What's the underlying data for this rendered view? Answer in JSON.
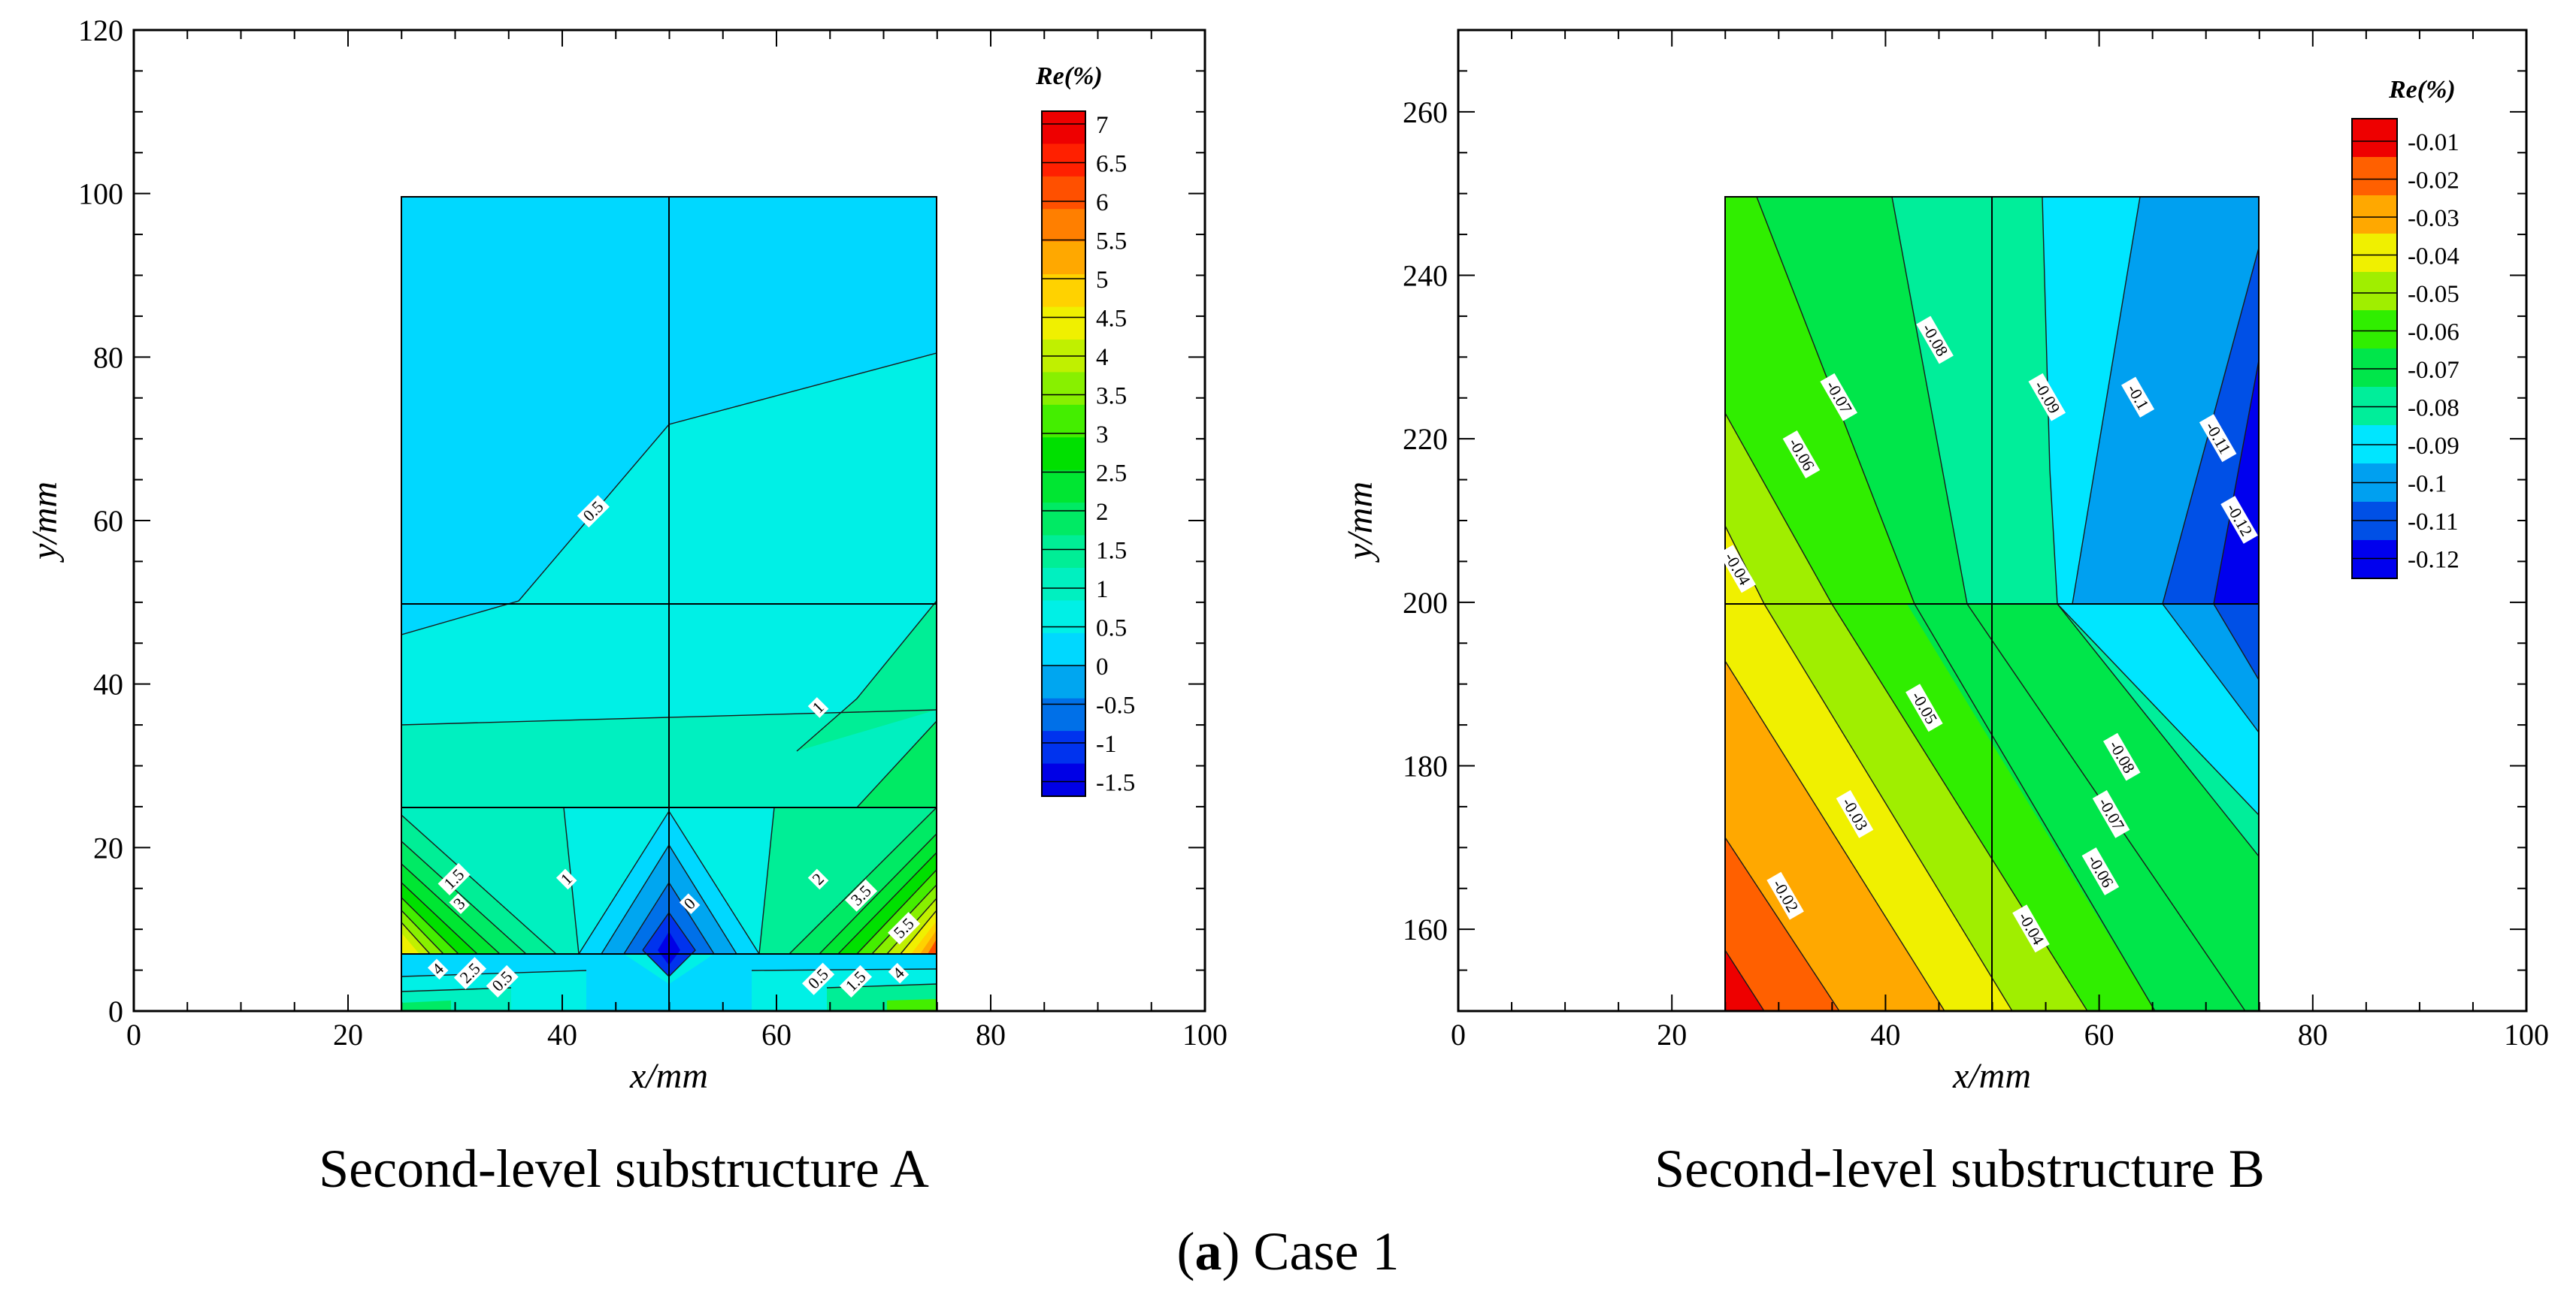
{
  "figure": {
    "caption_letter": "a",
    "caption_rest": "Case 1",
    "caption_open": "(",
    "caption_close": ")"
  },
  "colors": {
    "levels_A": [
      "#0000e6",
      "#0033ee",
      "#0070e8",
      "#00a6f0",
      "#00d8ff",
      "#00f0e6",
      "#00f0c0",
      "#00ee96",
      "#00ea64",
      "#00e632",
      "#00e000",
      "#44ee00",
      "#88f000",
      "#c0f000",
      "#f0f000",
      "#ffd200",
      "#ffa800",
      "#ff7f00",
      "#ff5000",
      "#ff2000",
      "#ee0000"
    ],
    "levels_B": [
      "#0000ee",
      "#0050e6",
      "#00a0f0",
      "#00e6ff",
      "#00ee9a",
      "#00e64a",
      "#30ee00",
      "#a0ee00",
      "#f0f000",
      "#ffa800",
      "#ff6000",
      "#ee0000"
    ]
  },
  "chart_data": [
    {
      "type": "contour",
      "id": "A",
      "subtitle": "Second-level substructure A",
      "xlabel": "x/mm",
      "ylabel": "y/mm",
      "xlim": [
        0,
        100
      ],
      "ylim": [
        0,
        120
      ],
      "xticks": [
        "0",
        "20",
        "40",
        "60",
        "80",
        "100"
      ],
      "yticks": [
        "0",
        "20",
        "40",
        "60",
        "80",
        "100",
        "120"
      ],
      "domain_x": [
        25,
        75
      ],
      "domain_y": [
        0,
        100
      ],
      "mesh_lines_x": [
        50
      ],
      "mesh_lines_y": [
        6,
        25,
        50
      ],
      "colorbar": {
        "title": "Re(%)",
        "labels": [
          "7",
          "6.5",
          "6",
          "5.5",
          "5",
          "4.5",
          "4",
          "3.5",
          "3",
          "2.5",
          "2",
          "1.5",
          "1",
          "0.5",
          "0",
          "-0.5",
          "-1",
          "-1.5"
        ]
      },
      "contour_labels": [
        {
          "text": "0.5",
          "x": 43,
          "y": 61
        },
        {
          "text": "1",
          "x": 64,
          "y": 37
        },
        {
          "text": "1.5",
          "x": 30,
          "y": 16
        },
        {
          "text": "1",
          "x": 40.5,
          "y": 16
        },
        {
          "text": "2",
          "x": 64,
          "y": 16
        },
        {
          "text": "3",
          "x": 30.5,
          "y": 13
        },
        {
          "text": "0",
          "x": 52,
          "y": 13
        },
        {
          "text": "3.5",
          "x": 68,
          "y": 14
        },
        {
          "text": "5.5",
          "x": 72,
          "y": 10
        },
        {
          "text": "4",
          "x": 28.5,
          "y": 5
        },
        {
          "text": "2.5",
          "x": 31.5,
          "y": 4.5
        },
        {
          "text": "0.5",
          "x": 34.5,
          "y": 3.5
        },
        {
          "text": "0.5",
          "x": 64,
          "y": 3.8
        },
        {
          "text": "1.5",
          "x": 67.5,
          "y": 3.5
        },
        {
          "text": "4",
          "x": 71.5,
          "y": 4.5
        }
      ]
    },
    {
      "type": "contour",
      "id": "B",
      "subtitle": "Second-level substructure B",
      "xlabel": "x/mm",
      "ylabel": "y/mm",
      "xlim": [
        0,
        100
      ],
      "ylim": [
        150,
        270
      ],
      "xticks": [
        "0",
        "20",
        "40",
        "60",
        "80",
        "100"
      ],
      "yticks": [
        "160",
        "180",
        "200",
        "220",
        "240",
        "260"
      ],
      "domain_x": [
        25,
        75
      ],
      "domain_y": [
        150,
        250
      ],
      "mesh_lines_x": [
        50
      ],
      "mesh_lines_y": [
        200
      ],
      "colorbar": {
        "title": "Re(%)",
        "labels": [
          "-0.01",
          "-0.02",
          "-0.03",
          "-0.04",
          "-0.05",
          "-0.06",
          "-0.07",
          "-0.08",
          "-0.09",
          "-0.1",
          "-0.11",
          "-0.12"
        ]
      },
      "contour_labels": [
        {
          "text": "-0.08",
          "x": 44.5,
          "y": 232
        },
        {
          "text": "-0.07",
          "x": 35.5,
          "y": 225
        },
        {
          "text": "-0.06",
          "x": 32,
          "y": 218
        },
        {
          "text": "-0.04",
          "x": 26,
          "y": 204
        },
        {
          "text": "-0.09",
          "x": 55,
          "y": 225
        },
        {
          "text": "-0.1",
          "x": 63.5,
          "y": 225
        },
        {
          "text": "-0.11",
          "x": 71,
          "y": 220
        },
        {
          "text": "-0.12",
          "x": 73,
          "y": 210
        },
        {
          "text": "-0.05",
          "x": 43.5,
          "y": 187
        },
        {
          "text": "-0.03",
          "x": 37,
          "y": 174
        },
        {
          "text": "-0.02",
          "x": 30.5,
          "y": 164
        },
        {
          "text": "-0.08",
          "x": 62,
          "y": 181
        },
        {
          "text": "-0.07",
          "x": 61,
          "y": 174
        },
        {
          "text": "-0.06",
          "x": 60,
          "y": 167
        },
        {
          "text": "-0.04",
          "x": 53.5,
          "y": 160
        }
      ]
    }
  ]
}
